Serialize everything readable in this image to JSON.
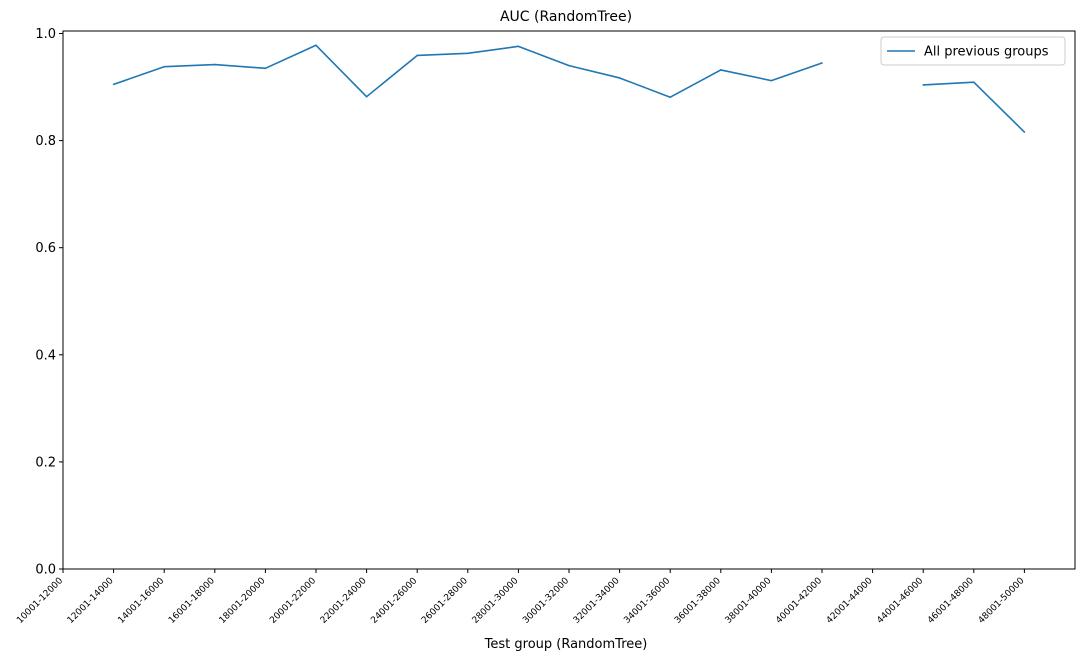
{
  "chart_data": {
    "type": "line",
    "title": "AUC (RandomTree)",
    "xlabel": "Test group (RandomTree)",
    "ylabel": "",
    "ylim": [
      0.0,
      1.0
    ],
    "yticks": [
      "0.0",
      "0.2",
      "0.4",
      "0.6",
      "0.8",
      "1.0"
    ],
    "categories": [
      "10001-12000",
      "12001-14000",
      "14001-16000",
      "16001-18000",
      "18001-20000",
      "20001-22000",
      "22001-24000",
      "24001-26000",
      "26001-28000",
      "28001-30000",
      "30001-32000",
      "32001-34000",
      "34001-36000",
      "36001-38000",
      "38001-40000",
      "40001-42000",
      "42001-44000",
      "44001-46000",
      "46001-48000",
      "48001-50000"
    ],
    "grid": false,
    "legend": "top-right",
    "series": [
      {
        "name": "All previous groups",
        "color": "#1f77b4",
        "values": [
          null,
          0.905,
          0.938,
          0.942,
          0.935,
          0.978,
          0.882,
          0.959,
          0.963,
          0.976,
          0.94,
          0.917,
          0.881,
          0.932,
          0.912,
          0.945,
          null,
          0.904,
          0.909,
          0.816
        ]
      }
    ]
  }
}
